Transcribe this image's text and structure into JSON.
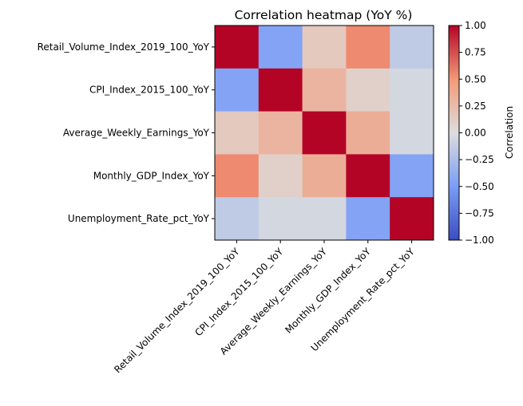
{
  "chart_data": {
    "type": "heatmap",
    "title": "Correlation heatmap (YoY %)",
    "x_labels": [
      "Retail_Volume_Index_2019_100_YoY",
      "CPI_Index_2015_100_YoY",
      "Average_Weekly_Earnings_YoY",
      "Monthly_GDP_Index_YoY",
      "Unemployment_Rate_pct_YoY"
    ],
    "y_labels": [
      "Retail_Volume_Index_2019_100_YoY",
      "CPI_Index_2015_100_YoY",
      "Average_Weekly_Earnings_YoY",
      "Monthly_GDP_Index_YoY",
      "Unemployment_Rate_pct_YoY"
    ],
    "matrix": [
      [
        1.0,
        -0.45,
        0.15,
        0.55,
        -0.15
      ],
      [
        -0.45,
        1.0,
        0.3,
        0.1,
        -0.05
      ],
      [
        0.15,
        0.3,
        1.0,
        0.35,
        -0.05
      ],
      [
        0.55,
        0.1,
        0.35,
        1.0,
        -0.45
      ],
      [
        -0.15,
        -0.05,
        -0.05,
        -0.45,
        1.0
      ]
    ],
    "colormap": "coolwarm",
    "vmin": -1.0,
    "vmax": 1.0,
    "colorbar": {
      "label": "Correlation",
      "ticks": [
        1.0,
        0.75,
        0.5,
        0.25,
        0.0,
        -0.25,
        -0.5,
        -0.75,
        -1.0
      ],
      "tick_labels": [
        "1.00",
        "0.75",
        "0.50",
        "0.25",
        "0.00",
        "−0.25",
        "−0.50",
        "−0.75",
        "−1.00"
      ]
    }
  }
}
